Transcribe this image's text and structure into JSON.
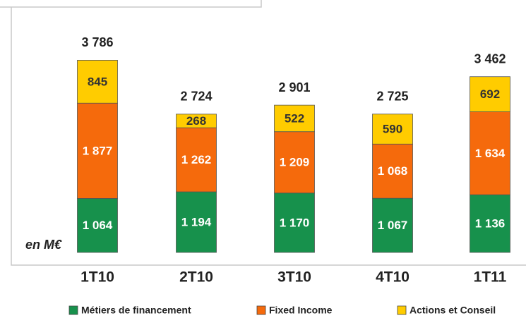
{
  "chart_data": {
    "type": "stacked_bar",
    "categories": [
      "1T10",
      "2T10",
      "3T10",
      "4T10",
      "1T11"
    ],
    "series": [
      {
        "name": "Métiers de financement",
        "color": "#17914c",
        "text_color": "#ffffff",
        "values": [
          1064,
          1194,
          1170,
          1067,
          1136
        ],
        "value_labels": [
          "1 064",
          "1 194",
          "1 170",
          "1 067",
          "1 136"
        ]
      },
      {
        "name": "Fixed Income",
        "color": "#f56a0c",
        "text_color": "#ffffff",
        "values": [
          1877,
          1262,
          1209,
          1068,
          1634
        ],
        "value_labels": [
          "1 877",
          "1 262",
          "1 209",
          "1 068",
          "1 634"
        ]
      },
      {
        "name": "Actions et Conseil",
        "color": "#ffcc00",
        "text_color": "#333333",
        "values": [
          845,
          268,
          522,
          590,
          692
        ],
        "value_labels": [
          "845",
          "268",
          "522",
          "590",
          "692"
        ]
      }
    ],
    "totals": [
      3786,
      2724,
      2901,
      2725,
      3462
    ],
    "total_labels": [
      "3 786",
      "2 724",
      "2 901",
      "2 725",
      "3 462"
    ],
    "annotation": "en M€",
    "ylim": [
      0,
      4000
    ]
  }
}
